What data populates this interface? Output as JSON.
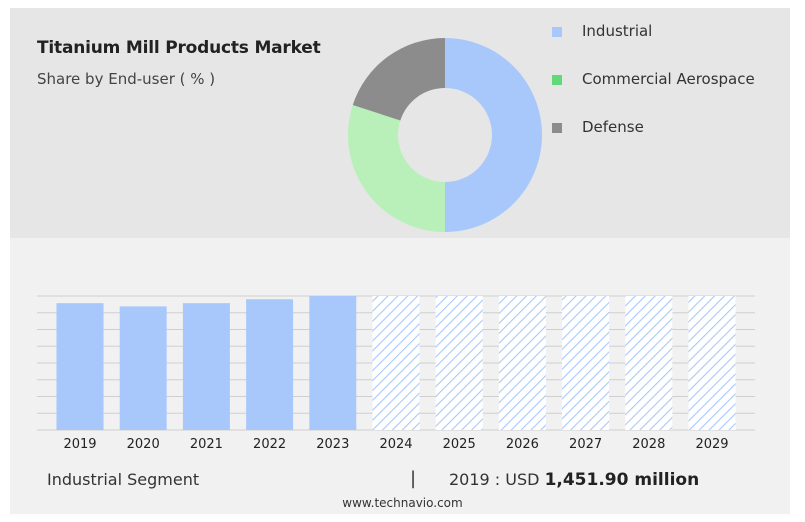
{
  "header": {
    "title": "Titanium Mill Products Market",
    "subtitle": "Share by End-user ( % )"
  },
  "colors": {
    "industrial": "#a8c8fb",
    "commercial_aerospace": "#b9f0b9",
    "defense": "#8c8c8c",
    "legend_commercial": "#5fd97a",
    "forecast_hatch": "#a8c8fb",
    "grid": "#cfcfcf"
  },
  "chart_data": [
    {
      "type": "pie",
      "donut": true,
      "legend_position": "right",
      "categories": [
        "Industrial",
        "Commercial Aerospace",
        "Defense"
      ],
      "values": [
        50,
        30,
        20
      ]
    },
    {
      "type": "bar",
      "categories": [
        "2019",
        "2020",
        "2021",
        "2022",
        "2023",
        "2024",
        "2025",
        "2026",
        "2027",
        "2028",
        "2029"
      ],
      "values": [
        1451.9,
        1415,
        1452,
        1497,
        1534,
        null,
        null,
        null,
        null,
        null,
        null
      ],
      "forecast_from": "2024",
      "ylim": [
        0,
        1534
      ],
      "grid": true
    }
  ],
  "footer": {
    "segment_label": "Industrial Segment",
    "divider": "|",
    "value_prefix": "2019 : USD",
    "value_amount": "1,451.90 million",
    "site": "www.technavio.com"
  }
}
